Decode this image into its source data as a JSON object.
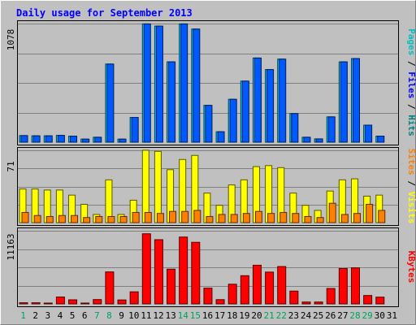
{
  "chart_data": {
    "type": "bar",
    "title": "Daily usage for September 2013",
    "categories": [
      "1",
      "2",
      "3",
      "4",
      "5",
      "6",
      "7",
      "8",
      "9",
      "10",
      "11",
      "12",
      "13",
      "14",
      "15",
      "16",
      "17",
      "18",
      "19",
      "20",
      "21",
      "22",
      "23",
      "24",
      "25",
      "26",
      "27",
      "28",
      "29",
      "30",
      "31"
    ],
    "weekend_days": [
      "1",
      "7",
      "8",
      "14",
      "15",
      "21",
      "22",
      "28",
      "29"
    ],
    "panels": [
      {
        "id": "hits",
        "ymax_label": "1078",
        "ylim": [
          0,
          1078
        ],
        "legend": [
          "Pages",
          "/",
          "Files",
          "/",
          "Hits"
        ],
        "series": [
          {
            "name": "Hits",
            "color": "#00c0ff",
            "values": [
              60,
              58,
              58,
              62,
              55,
              28,
              45,
              710,
              28,
              225,
              1075,
              1055,
              730,
              1075,
              1028,
              335,
              95,
              390,
              555,
              765,
              660,
              755,
              260,
              45,
              30,
              230,
              730,
              760,
              155,
              55,
              0
            ]
          },
          {
            "name": "Files",
            "color": "#0058ff",
            "values": [
              60,
              58,
              58,
              62,
              55,
              28,
              45,
              710,
              28,
              225,
              1075,
              1055,
              730,
              1075,
              1028,
              335,
              95,
              390,
              555,
              765,
              660,
              755,
              260,
              45,
              30,
              230,
              730,
              760,
              155,
              55,
              0
            ]
          },
          {
            "name": "Pages",
            "color": "#00ffff",
            "values": [
              0,
              0,
              0,
              0,
              0,
              0,
              0,
              0,
              0,
              0,
              0,
              0,
              0,
              0,
              0,
              0,
              0,
              0,
              0,
              0,
              0,
              0,
              0,
              0,
              0,
              0,
              0,
              0,
              0,
              0,
              0
            ]
          }
        ]
      },
      {
        "id": "visits",
        "ymax_label": "71",
        "ylim": [
          0,
          71
        ],
        "legend": [
          "Sites",
          "/",
          "Visits"
        ],
        "series": [
          {
            "name": "Visits",
            "color": "#ffff00",
            "values": [
              33,
              33,
              32,
              32,
              27,
              18,
              8,
              42,
              8,
              22,
              71,
              70,
              52,
              62,
              66,
              29,
              17,
              37,
              42,
              55,
              56,
              54,
              29,
              17,
              12,
              31,
              42,
              43,
              26,
              27,
              0
            ]
          },
          {
            "name": "Sites",
            "color": "#ff8000",
            "values": [
              10,
              7,
              6,
              7,
              7,
              5,
              6,
              6,
              6,
              10,
              10,
              9,
              11,
              11,
              12,
              6,
              8,
              8,
              9,
              11,
              9,
              10,
              9,
              6,
              5,
              19,
              8,
              9,
              18,
              12,
              0
            ]
          }
        ]
      },
      {
        "id": "kbytes",
        "ymax_label": "11163",
        "ylim": [
          0,
          11163
        ],
        "legend": [
          "KBytes"
        ],
        "series": [
          {
            "name": "KBytes",
            "color": "#ff0000",
            "values": [
              170,
              170,
              80,
              1050,
              620,
              80,
              660,
              4880,
              600,
              1840,
              10700,
              9800,
              5300,
              10200,
              9400,
              2400,
              650,
              3000,
              4300,
              5900,
              4850,
              5700,
              1950,
              280,
              280,
              2350,
              5400,
              5500,
              1280,
              1030,
              0
            ]
          }
        ]
      }
    ]
  }
}
